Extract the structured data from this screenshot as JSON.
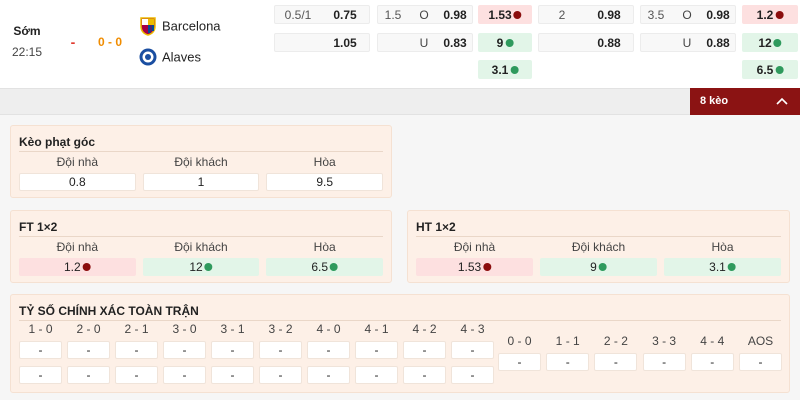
{
  "match": {
    "period": "Sớm",
    "time": "22:15",
    "status": "-",
    "score": "0 - 0",
    "home": "Barcelona",
    "away": "Alaves"
  },
  "odds": {
    "group_1": {
      "handicap": {
        "line": "0.5/1",
        "home": 0.75,
        "away": 1.05
      },
      "over_under": {
        "line": 1.5,
        "over_label": "O",
        "over": 0.98,
        "under_label": "U",
        "under": 0.83
      },
      "one_x_two": {
        "home": 1.53,
        "away": 9,
        "draw": 3.1
      }
    },
    "group_2": {
      "handicap": {
        "line": 2,
        "home": 0.98,
        "away": 0.88
      },
      "over_under": {
        "line": 3.5,
        "over_label": "O",
        "over": 0.98,
        "under_label": "U",
        "under": 0.88
      },
      "one_x_two": {
        "home": 1.2,
        "away": 12,
        "draw": 6.5
      }
    }
  },
  "expand_button": "8 kèo",
  "corner": {
    "title": "Kèo phạt góc",
    "headers": [
      "Đội nhà",
      "Đội khách",
      "Hòa"
    ],
    "values": [
      0.8,
      1,
      9.5
    ]
  },
  "ft": {
    "title": "FT 1×2",
    "headers": [
      "Đội nhà",
      "Đội khách",
      "Hòa"
    ],
    "values": [
      1.2,
      12,
      6.5
    ]
  },
  "ht": {
    "title": "HT 1×2",
    "headers": [
      "Đội nhà",
      "Đội khách",
      "Hòa"
    ],
    "values": [
      1.53,
      9,
      3.1
    ]
  },
  "correct_score": {
    "title": "TỶ SỐ CHÍNH XÁC TOÀN TRẬN",
    "columns": [
      {
        "label": "1 - 0",
        "values": [
          "-",
          "-"
        ]
      },
      {
        "label": "2 - 0",
        "values": [
          "-",
          "-"
        ]
      },
      {
        "label": "2 - 1",
        "values": [
          "-",
          "-"
        ]
      },
      {
        "label": "3 - 0",
        "values": [
          "-",
          "-"
        ]
      },
      {
        "label": "3 - 1",
        "values": [
          "-",
          "-"
        ]
      },
      {
        "label": "3 - 2",
        "values": [
          "-",
          "-"
        ]
      },
      {
        "label": "4 - 0",
        "values": [
          "-",
          "-"
        ]
      },
      {
        "label": "4 - 1",
        "values": [
          "-",
          "-"
        ]
      },
      {
        "label": "4 - 2",
        "values": [
          "-",
          "-"
        ]
      },
      {
        "label": "4 - 3",
        "values": [
          "-",
          "-"
        ]
      }
    ],
    "draws": [
      {
        "label": "0 - 0",
        "value": "-"
      },
      {
        "label": "1 - 1",
        "value": "-"
      },
      {
        "label": "2 - 2",
        "value": "-"
      },
      {
        "label": "3 - 3",
        "value": "-"
      },
      {
        "label": "4 - 4",
        "value": "-"
      },
      {
        "label": "AOS",
        "value": "-"
      }
    ]
  }
}
